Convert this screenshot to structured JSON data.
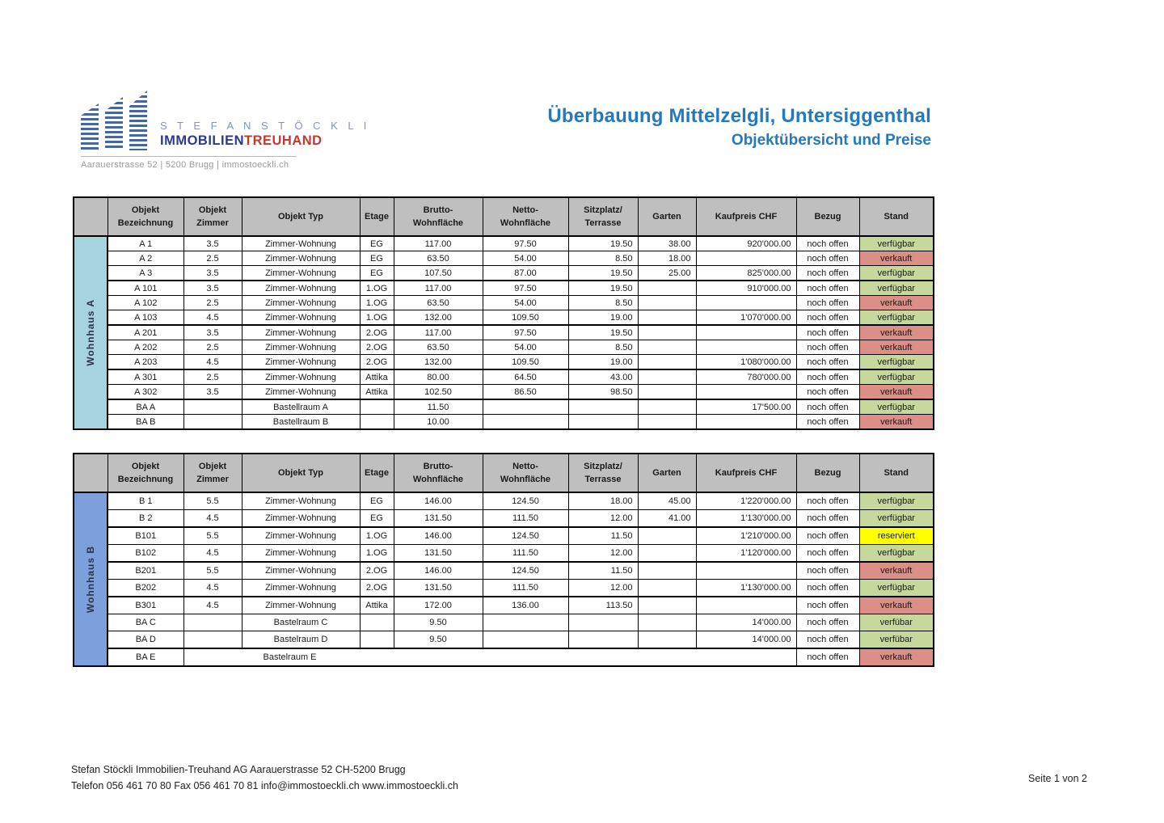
{
  "logo": {
    "name_line": "S T E F A N   S T Ö C K L I",
    "brand_blue": "IMMOBILIEN",
    "brand_red": "TREUHAND",
    "address": "Aarauerstrasse 52 | 5200 Brugg | immostoeckli.ch"
  },
  "header": {
    "title_line1": "Überbauung Mittelzelgli, Untersiggenthal",
    "title_line2": "Objektübersicht und Preise"
  },
  "colors": {
    "accent_blue": "#2479BD",
    "header_gray": "#BFBFBF",
    "band_wohnhaus_a": "#A5D3DE",
    "band_wohnhaus_b": "#7D9FDC",
    "status_green": "#C6D89B",
    "status_red": "#DB8F86",
    "status_yellow": "#FFFF00",
    "logo_blue": "#2B3A8F",
    "logo_red": "#C03A2E"
  },
  "columns": [
    "Objekt\nBezeichnung",
    "Objekt\nZimmer",
    "Objekt Typ",
    "Etage",
    "Brutto-\nWohnfläche",
    "Netto-\nWohnfläche",
    "Sitzplatz/\nTerrasse",
    "Garten",
    "Kaufpreis CHF",
    "Bezug",
    "Stand"
  ],
  "tables": [
    {
      "band_label": "Wohnhaus A",
      "band_color": "#A5D3DE",
      "rows": [
        {
          "bez": "A 1",
          "zimmer": "3.5",
          "typ": "Zimmer-Wohnung",
          "etage": "EG",
          "brutto": "117.00",
          "netto": "97.50",
          "sitzplatz": "19.50",
          "garten": "38.00",
          "kaufpreis": "920'000.00",
          "bezug": "noch offen",
          "stand": "verfügbar",
          "stand_color": "green"
        },
        {
          "bez": "A 2",
          "zimmer": "2.5",
          "typ": "Zimmer-Wohnung",
          "etage": "EG",
          "brutto": "63.50",
          "netto": "54.00",
          "sitzplatz": "8.50",
          "garten": "18.00",
          "kaufpreis": "",
          "bezug": "noch offen",
          "stand": "verkauft",
          "stand_color": "red"
        },
        {
          "bez": "A 3",
          "zimmer": "3.5",
          "typ": "Zimmer-Wohnung",
          "etage": "EG",
          "brutto": "107.50",
          "netto": "87.00",
          "sitzplatz": "19.50",
          "garten": "25.00",
          "kaufpreis": "825'000.00",
          "bezug": "noch offen",
          "stand": "verfügbar",
          "stand_color": "green"
        },
        {
          "bez": "A 101",
          "zimmer": "3.5",
          "typ": "Zimmer-Wohnung",
          "etage": "1.OG",
          "brutto": "117.00",
          "netto": "97.50",
          "sitzplatz": "19.50",
          "garten": "",
          "kaufpreis": "910'000.00",
          "bezug": "noch offen",
          "stand": "verfügbar",
          "stand_color": "green",
          "thick_top": true
        },
        {
          "bez": "A 102",
          "zimmer": "2.5",
          "typ": "Zimmer-Wohnung",
          "etage": "1.OG",
          "brutto": "63.50",
          "netto": "54.00",
          "sitzplatz": "8.50",
          "garten": "",
          "kaufpreis": "",
          "bezug": "noch offen",
          "stand": "verkauft",
          "stand_color": "red"
        },
        {
          "bez": "A 103",
          "zimmer": "4.5",
          "typ": "Zimmer-Wohnung",
          "etage": "1.OG",
          "brutto": "132.00",
          "netto": "109.50",
          "sitzplatz": "19.00",
          "garten": "",
          "kaufpreis": "1'070'000.00",
          "bezug": "noch offen",
          "stand": "verfügbar",
          "stand_color": "green"
        },
        {
          "bez": "A 201",
          "zimmer": "3.5",
          "typ": "Zimmer-Wohnung",
          "etage": "2.OG",
          "brutto": "117.00",
          "netto": "97.50",
          "sitzplatz": "19.50",
          "garten": "",
          "kaufpreis": "",
          "bezug": "noch offen",
          "stand": "verkauft",
          "stand_color": "red",
          "thick_top": true
        },
        {
          "bez": "A 202",
          "zimmer": "2.5",
          "typ": "Zimmer-Wohnung",
          "etage": "2.OG",
          "brutto": "63.50",
          "netto": "54.00",
          "sitzplatz": "8.50",
          "garten": "",
          "kaufpreis": "",
          "bezug": "noch offen",
          "stand": "verkauft",
          "stand_color": "red"
        },
        {
          "bez": "A 203",
          "zimmer": "4.5",
          "typ": "Zimmer-Wohnung",
          "etage": "2.OG",
          "brutto": "132.00",
          "netto": "109.50",
          "sitzplatz": "19.00",
          "garten": "",
          "kaufpreis": "1'080'000.00",
          "bezug": "noch offen",
          "stand": "verfügbar",
          "stand_color": "green"
        },
        {
          "bez": "A 301",
          "zimmer": "2.5",
          "typ": "Zimmer-Wohnung",
          "etage": "Attika",
          "brutto": "80.00",
          "netto": "64.50",
          "sitzplatz": "43.00",
          "garten": "",
          "kaufpreis": "780'000.00",
          "bezug": "noch offen",
          "stand": "verfügbar",
          "stand_color": "green",
          "thick_top": true
        },
        {
          "bez": "A 302",
          "zimmer": "3.5",
          "typ": "Zimmer-Wohnung",
          "etage": "Attika",
          "brutto": "102.50",
          "netto": "86.50",
          "sitzplatz": "98.50",
          "garten": "",
          "kaufpreis": "",
          "bezug": "noch offen",
          "stand": "verkauft",
          "stand_color": "red"
        },
        {
          "bez": "BA A",
          "zimmer": "",
          "typ": "Bastellraum A",
          "etage": "",
          "brutto": "11.50",
          "netto": "",
          "sitzplatz": "",
          "garten": "",
          "kaufpreis": "17'500.00",
          "bezug": "noch offen",
          "stand": "verfügbar",
          "stand_color": "green",
          "thick_top": true
        },
        {
          "bez": "BA B",
          "zimmer": "",
          "typ": "Bastellraum B",
          "etage": "",
          "brutto": "10.00",
          "netto": "",
          "sitzplatz": "",
          "garten": "",
          "kaufpreis": "",
          "bezug": "noch offen",
          "stand": "verkauft",
          "stand_color": "red"
        }
      ]
    },
    {
      "band_label": "Wohnhaus B",
      "band_color": "#7D9FDC",
      "rows": [
        {
          "bez": "B 1",
          "zimmer": "5.5",
          "typ": "Zimmer-Wohnung",
          "etage": "EG",
          "brutto": "146.00",
          "netto": "124.50",
          "sitzplatz": "18.00",
          "garten": "45.00",
          "kaufpreis": "1'220'000.00",
          "bezug": "noch offen",
          "stand": "verfügbar",
          "stand_color": "green"
        },
        {
          "bez": "B 2",
          "zimmer": "4.5",
          "typ": "Zimmer-Wohnung",
          "etage": "EG",
          "brutto": "131.50",
          "netto": "111.50",
          "sitzplatz": "12.00",
          "garten": "41.00",
          "kaufpreis": "1'130'000.00",
          "bezug": "noch offen",
          "stand": "verfügbar",
          "stand_color": "green"
        },
        {
          "bez": "B101",
          "zimmer": "5.5",
          "typ": "Zimmer-Wohnung",
          "etage": "1.OG",
          "brutto": "146.00",
          "netto": "124.50",
          "sitzplatz": "11.50",
          "garten": "",
          "kaufpreis": "1'210'000.00",
          "bezug": "noch offen",
          "stand": "reserviert",
          "stand_color": "yellow",
          "thick_top": true
        },
        {
          "bez": "B102",
          "zimmer": "4.5",
          "typ": "Zimmer-Wohnung",
          "etage": "1.OG",
          "brutto": "131.50",
          "netto": "111.50",
          "sitzplatz": "12.00",
          "garten": "",
          "kaufpreis": "1'120'000.00",
          "bezug": "noch offen",
          "stand": "verfügbar",
          "stand_color": "green"
        },
        {
          "bez": "B201",
          "zimmer": "5.5",
          "typ": "Zimmer-Wohnung",
          "etage": "2.OG",
          "brutto": "146.00",
          "netto": "124.50",
          "sitzplatz": "11.50",
          "garten": "",
          "kaufpreis": "",
          "bezug": "noch offen",
          "stand": "verkauft",
          "stand_color": "red",
          "thick_top": true
        },
        {
          "bez": "B202",
          "zimmer": "4.5",
          "typ": "Zimmer-Wohnung",
          "etage": "2.OG",
          "brutto": "131.50",
          "netto": "111.50",
          "sitzplatz": "12.00",
          "garten": "",
          "kaufpreis": "1'130'000.00",
          "bezug": "noch offen",
          "stand": "verfügbar",
          "stand_color": "green"
        },
        {
          "bez": "B301",
          "zimmer": "4.5",
          "typ": "Zimmer-Wohnung",
          "etage": "Attika",
          "brutto": "172.00",
          "netto": "136.00",
          "sitzplatz": "113.50",
          "garten": "",
          "kaufpreis": "",
          "bezug": "noch offen",
          "stand": "verkauft",
          "stand_color": "red",
          "thick_top": true
        },
        {
          "bez": "BA C",
          "zimmer": "",
          "typ": "Bastelraum C",
          "etage": "",
          "brutto": "9.50",
          "netto": "",
          "sitzplatz": "",
          "garten": "",
          "kaufpreis": "14'000.00",
          "bezug": "noch offen",
          "stand": "verfübar",
          "stand_color": "green"
        },
        {
          "bez": "BA D",
          "zimmer": "",
          "typ": "Bastelraum D",
          "etage": "",
          "brutto": "9.50",
          "netto": "",
          "sitzplatz": "",
          "garten": "",
          "kaufpreis": "14'000.00",
          "bezug": "noch offen",
          "stand": "verfübar",
          "stand_color": "green"
        },
        {
          "bez": "BA E",
          "merged": true,
          "typ": "Bastelraum E",
          "bezug": "noch offen",
          "stand": "verkauft",
          "stand_color": "red",
          "thick_top": true
        }
      ]
    }
  ],
  "footer": {
    "line1": "Stefan Stöckli Immobilien-Treuhand AG Aarauerstrasse 52 CH-5200 Brugg",
    "line2": "Telefon 056 461 70 80 Fax 056 461 70 81 info@immostoeckli.ch www.immostoeckli.ch",
    "page_indicator": "Seite 1 von 2"
  }
}
